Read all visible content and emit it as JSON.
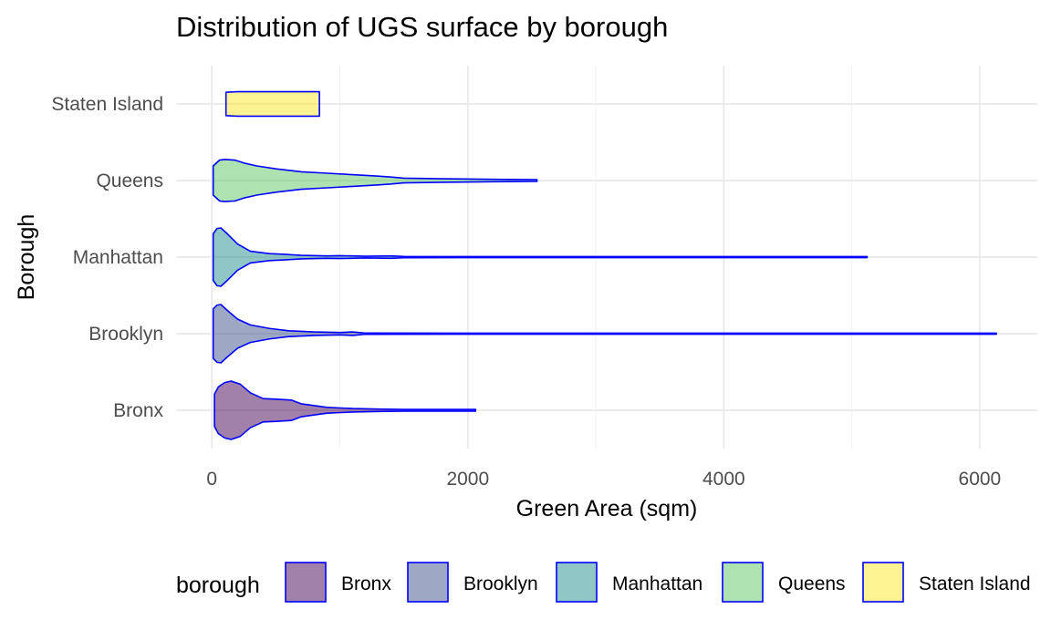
{
  "chart_data": {
    "type": "violin",
    "orientation": "horizontal",
    "title": "Distribution of UGS surface by borough",
    "xlabel": "Green Area (sqm)",
    "ylabel": "Borough",
    "xlim": [
      -280,
      6450
    ],
    "x_ticks": [
      0,
      2000,
      4000,
      6000
    ],
    "x_tick_labels": [
      "0",
      "2000",
      "4000",
      "6000"
    ],
    "categories": [
      "Bronx",
      "Brooklyn",
      "Manhattan",
      "Queens",
      "Staten Island"
    ],
    "grid": true,
    "outline_color": "#0000ff",
    "legend": {
      "title": "borough",
      "position": "bottom",
      "items": [
        "Bronx",
        "Brooklyn",
        "Manhattan",
        "Queens",
        "Staten Island"
      ]
    },
    "series": [
      {
        "category": "Bronx",
        "fill": "#440154",
        "min": 20,
        "max": 2060,
        "density": [
          [
            20,
            0.55
          ],
          [
            50,
            0.8
          ],
          [
            100,
            0.95
          ],
          [
            150,
            1.0
          ],
          [
            220,
            0.9
          ],
          [
            300,
            0.6
          ],
          [
            400,
            0.4
          ],
          [
            500,
            0.38
          ],
          [
            620,
            0.35
          ],
          [
            700,
            0.22
          ],
          [
            900,
            0.1
          ],
          [
            1100,
            0.06
          ],
          [
            1300,
            0.04
          ],
          [
            1500,
            0.03
          ],
          [
            1700,
            0.03
          ],
          [
            1900,
            0.03
          ],
          [
            2060,
            0.03
          ]
        ]
      },
      {
        "category": "Brooklyn",
        "fill": "#3b528b",
        "min": 10,
        "max": 6130,
        "density": [
          [
            10,
            0.85
          ],
          [
            40,
            0.98
          ],
          [
            70,
            1.0
          ],
          [
            120,
            0.8
          ],
          [
            200,
            0.5
          ],
          [
            300,
            0.3
          ],
          [
            450,
            0.18
          ],
          [
            600,
            0.1
          ],
          [
            800,
            0.06
          ],
          [
            1000,
            0.04
          ],
          [
            1100,
            0.06
          ],
          [
            1200,
            0.02
          ],
          [
            2000,
            0.01
          ],
          [
            4000,
            0.007
          ],
          [
            6130,
            0.007
          ]
        ]
      },
      {
        "category": "Manhattan",
        "fill": "#21908d",
        "min": 10,
        "max": 5120,
        "density": [
          [
            10,
            0.8
          ],
          [
            40,
            0.98
          ],
          [
            70,
            1.0
          ],
          [
            120,
            0.8
          ],
          [
            200,
            0.45
          ],
          [
            300,
            0.2
          ],
          [
            450,
            0.12
          ],
          [
            550,
            0.1
          ],
          [
            700,
            0.06
          ],
          [
            900,
            0.04
          ],
          [
            1000,
            0.05
          ],
          [
            1200,
            0.03
          ],
          [
            1400,
            0.04
          ],
          [
            1500,
            0.02
          ],
          [
            2500,
            0.01
          ],
          [
            5120,
            0.008
          ]
        ]
      },
      {
        "category": "Queens",
        "fill": "#5dc863",
        "min": 10,
        "max": 2540,
        "density": [
          [
            10,
            0.5
          ],
          [
            60,
            0.7
          ],
          [
            100,
            0.72
          ],
          [
            180,
            0.7
          ],
          [
            250,
            0.6
          ],
          [
            350,
            0.5
          ],
          [
            500,
            0.4
          ],
          [
            700,
            0.3
          ],
          [
            900,
            0.25
          ],
          [
            1100,
            0.2
          ],
          [
            1300,
            0.15
          ],
          [
            1400,
            0.12
          ],
          [
            1500,
            0.08
          ],
          [
            1800,
            0.06
          ],
          [
            2200,
            0.04
          ],
          [
            2540,
            0.03
          ]
        ]
      },
      {
        "category": "Staten Island",
        "fill": "#fde725",
        "min": 110,
        "max": 840,
        "density": [
          [
            110,
            0.4
          ],
          [
            200,
            0.42
          ],
          [
            400,
            0.42
          ],
          [
            600,
            0.42
          ],
          [
            840,
            0.42
          ]
        ]
      }
    ]
  }
}
